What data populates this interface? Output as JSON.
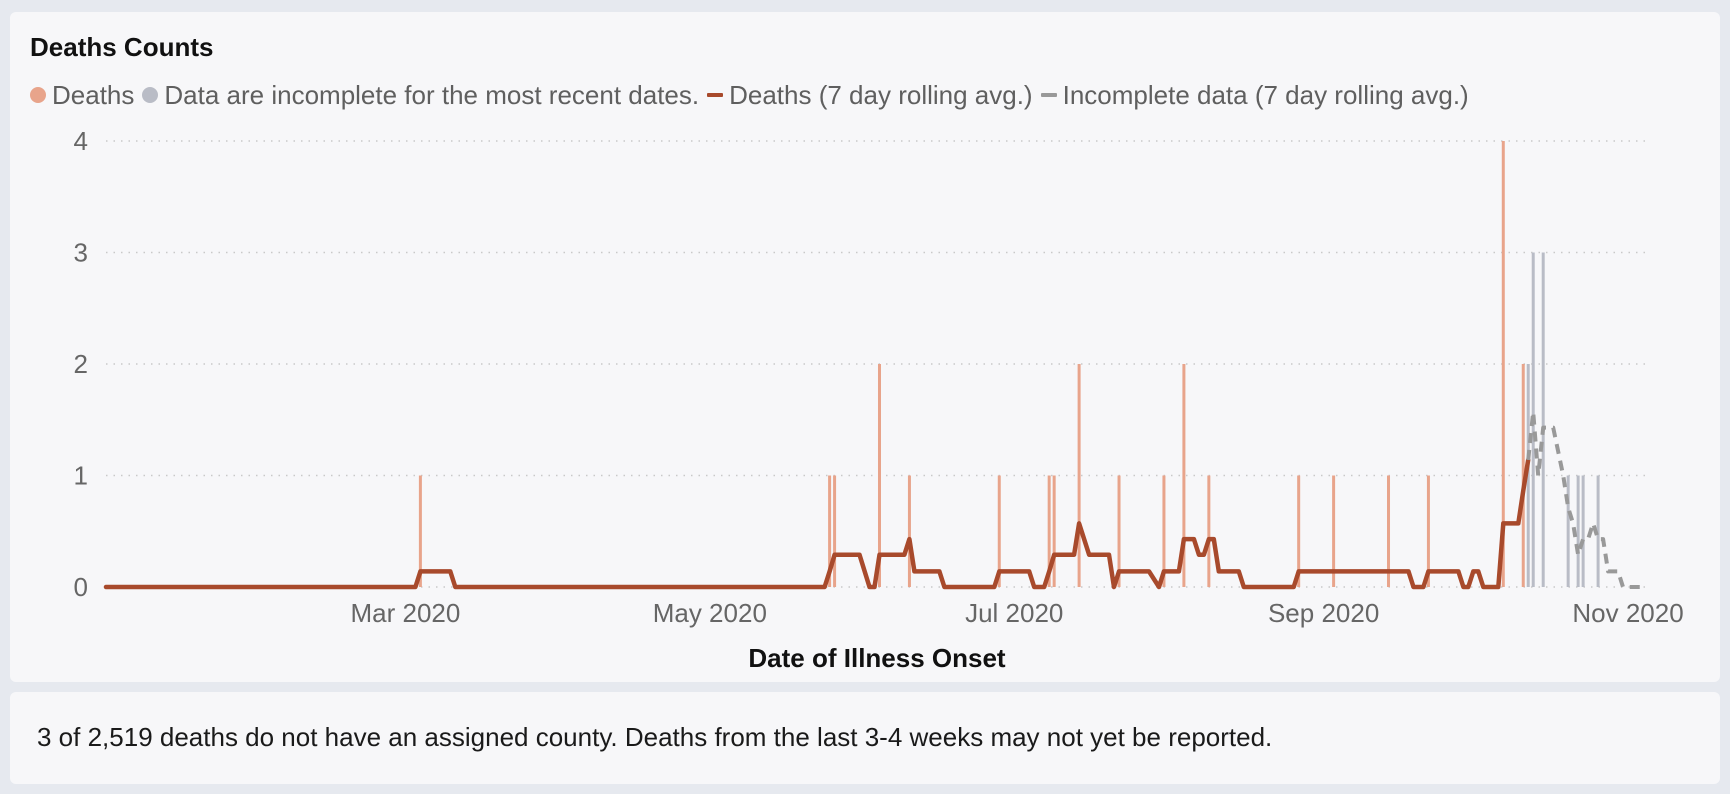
{
  "chart_data": {
    "type": "bar",
    "title": "Deaths Counts",
    "xlabel": "Date of Illness Onset",
    "ylabel": "",
    "ylim": [
      0,
      4
    ],
    "yticks": [
      0,
      1,
      2,
      3,
      4
    ],
    "x_start": "2020-01-01",
    "x_end": "2020-11-05",
    "xticks": [
      {
        "date": "2020-03-01",
        "label": "Mar 2020"
      },
      {
        "date": "2020-05-01",
        "label": "May 2020"
      },
      {
        "date": "2020-07-01",
        "label": "Jul 2020"
      },
      {
        "date": "2020-09-01",
        "label": "Sep 2020"
      },
      {
        "date": "2020-11-01",
        "label": "Nov 2020"
      }
    ],
    "grid": true,
    "legend_position": "top-left",
    "legend": [
      {
        "label": "Deaths",
        "marker": "dot",
        "color": "#e8a48b"
      },
      {
        "label": "Data are incomplete for the most recent dates.",
        "marker": "dot",
        "color": "#b9bcc6"
      },
      {
        "label": "Deaths (7 day rolling avg.)",
        "marker": "line",
        "color": "#a84a2c"
      },
      {
        "label": "Incomplete data (7 day rolling avg.)",
        "marker": "line",
        "color": "#999999"
      }
    ],
    "series": [
      {
        "name": "Deaths",
        "kind": "bar",
        "color": "#e8a48b",
        "points": [
          {
            "x": "2020-03-04",
            "y": 1
          },
          {
            "x": "2020-05-25",
            "y": 1
          },
          {
            "x": "2020-05-26",
            "y": 1
          },
          {
            "x": "2020-06-04",
            "y": 2
          },
          {
            "x": "2020-06-10",
            "y": 1
          },
          {
            "x": "2020-06-28",
            "y": 1
          },
          {
            "x": "2020-07-08",
            "y": 1
          },
          {
            "x": "2020-07-09",
            "y": 1
          },
          {
            "x": "2020-07-14",
            "y": 2
          },
          {
            "x": "2020-07-22",
            "y": 1
          },
          {
            "x": "2020-07-31",
            "y": 1
          },
          {
            "x": "2020-08-04",
            "y": 2
          },
          {
            "x": "2020-08-09",
            "y": 1
          },
          {
            "x": "2020-08-27",
            "y": 1
          },
          {
            "x": "2020-09-03",
            "y": 1
          },
          {
            "x": "2020-09-14",
            "y": 1
          },
          {
            "x": "2020-09-22",
            "y": 1
          },
          {
            "x": "2020-10-07",
            "y": 4
          },
          {
            "x": "2020-10-11",
            "y": 2
          }
        ]
      },
      {
        "name": "Data are incomplete for the most recent dates.",
        "kind": "bar",
        "color": "#b9bcc6",
        "points": [
          {
            "x": "2020-10-12",
            "y": 2
          },
          {
            "x": "2020-10-13",
            "y": 3
          },
          {
            "x": "2020-10-15",
            "y": 3
          },
          {
            "x": "2020-10-20",
            "y": 1
          },
          {
            "x": "2020-10-22",
            "y": 1
          },
          {
            "x": "2020-10-23",
            "y": 1
          },
          {
            "x": "2020-10-26",
            "y": 1
          }
        ]
      },
      {
        "name": "Deaths (7 day rolling avg.)",
        "kind": "line",
        "color": "#a84a2c",
        "points": [
          {
            "x": "2020-01-01",
            "y": 0
          },
          {
            "x": "2020-03-03",
            "y": 0
          },
          {
            "x": "2020-03-04",
            "y": 0.14
          },
          {
            "x": "2020-03-10",
            "y": 0.14
          },
          {
            "x": "2020-03-11",
            "y": 0
          },
          {
            "x": "2020-05-24",
            "y": 0
          },
          {
            "x": "2020-05-25",
            "y": 0.14
          },
          {
            "x": "2020-05-26",
            "y": 0.29
          },
          {
            "x": "2020-05-31",
            "y": 0.29
          },
          {
            "x": "2020-06-02",
            "y": 0
          },
          {
            "x": "2020-06-03",
            "y": 0
          },
          {
            "x": "2020-06-04",
            "y": 0.29
          },
          {
            "x": "2020-06-09",
            "y": 0.29
          },
          {
            "x": "2020-06-10",
            "y": 0.43
          },
          {
            "x": "2020-06-11",
            "y": 0.14
          },
          {
            "x": "2020-06-16",
            "y": 0.14
          },
          {
            "x": "2020-06-17",
            "y": 0
          },
          {
            "x": "2020-06-27",
            "y": 0
          },
          {
            "x": "2020-06-28",
            "y": 0.14
          },
          {
            "x": "2020-07-04",
            "y": 0.14
          },
          {
            "x": "2020-07-05",
            "y": 0
          },
          {
            "x": "2020-07-07",
            "y": 0
          },
          {
            "x": "2020-07-08",
            "y": 0.14
          },
          {
            "x": "2020-07-09",
            "y": 0.29
          },
          {
            "x": "2020-07-13",
            "y": 0.29
          },
          {
            "x": "2020-07-14",
            "y": 0.57
          },
          {
            "x": "2020-07-16",
            "y": 0.29
          },
          {
            "x": "2020-07-20",
            "y": 0.29
          },
          {
            "x": "2020-07-21",
            "y": 0
          },
          {
            "x": "2020-07-22",
            "y": 0.14
          },
          {
            "x": "2020-07-28",
            "y": 0.14
          },
          {
            "x": "2020-07-30",
            "y": 0
          },
          {
            "x": "2020-07-31",
            "y": 0.14
          },
          {
            "x": "2020-08-03",
            "y": 0.14
          },
          {
            "x": "2020-08-04",
            "y": 0.43
          },
          {
            "x": "2020-08-06",
            "y": 0.43
          },
          {
            "x": "2020-08-07",
            "y": 0.29
          },
          {
            "x": "2020-08-08",
            "y": 0.29
          },
          {
            "x": "2020-08-09",
            "y": 0.43
          },
          {
            "x": "2020-08-10",
            "y": 0.43
          },
          {
            "x": "2020-08-11",
            "y": 0.14
          },
          {
            "x": "2020-08-15",
            "y": 0.14
          },
          {
            "x": "2020-08-16",
            "y": 0
          },
          {
            "x": "2020-08-26",
            "y": 0
          },
          {
            "x": "2020-08-27",
            "y": 0.14
          },
          {
            "x": "2020-09-18",
            "y": 0.14
          },
          {
            "x": "2020-09-19",
            "y": 0
          },
          {
            "x": "2020-09-21",
            "y": 0
          },
          {
            "x": "2020-09-22",
            "y": 0.14
          },
          {
            "x": "2020-09-28",
            "y": 0.14
          },
          {
            "x": "2020-09-29",
            "y": 0
          },
          {
            "x": "2020-09-30",
            "y": 0
          },
          {
            "x": "2020-10-01",
            "y": 0.14
          },
          {
            "x": "2020-10-02",
            "y": 0.14
          },
          {
            "x": "2020-10-03",
            "y": 0
          },
          {
            "x": "2020-10-06",
            "y": 0
          },
          {
            "x": "2020-10-07",
            "y": 0.57
          },
          {
            "x": "2020-10-10",
            "y": 0.57
          },
          {
            "x": "2020-10-11",
            "y": 0.86
          },
          {
            "x": "2020-10-12",
            "y": 1.14
          }
        ]
      },
      {
        "name": "Incomplete data (7 day rolling avg.)",
        "kind": "line",
        "color": "#999999",
        "dashed": true,
        "points": [
          {
            "x": "2020-10-12",
            "y": 1.14
          },
          {
            "x": "2020-10-13",
            "y": 1.57
          },
          {
            "x": "2020-10-14",
            "y": 1.0
          },
          {
            "x": "2020-10-15",
            "y": 1.43
          },
          {
            "x": "2020-10-17",
            "y": 1.43
          },
          {
            "x": "2020-10-19",
            "y": 1.0
          },
          {
            "x": "2020-10-20",
            "y": 0.71
          },
          {
            "x": "2020-10-21",
            "y": 0.57
          },
          {
            "x": "2020-10-22",
            "y": 0.29
          },
          {
            "x": "2020-10-23",
            "y": 0.43
          },
          {
            "x": "2020-10-24",
            "y": 0.43
          },
          {
            "x": "2020-10-25",
            "y": 0.57
          },
          {
            "x": "2020-10-26",
            "y": 0.43
          },
          {
            "x": "2020-10-27",
            "y": 0.43
          },
          {
            "x": "2020-10-28",
            "y": 0.14
          },
          {
            "x": "2020-10-30",
            "y": 0.14
          },
          {
            "x": "2020-10-31",
            "y": 0
          },
          {
            "x": "2020-11-04",
            "y": 0
          }
        ]
      }
    ]
  },
  "footnote": "3 of 2,519 deaths do not have an assigned county. Deaths from the last 3-4 weeks may not yet be reported."
}
